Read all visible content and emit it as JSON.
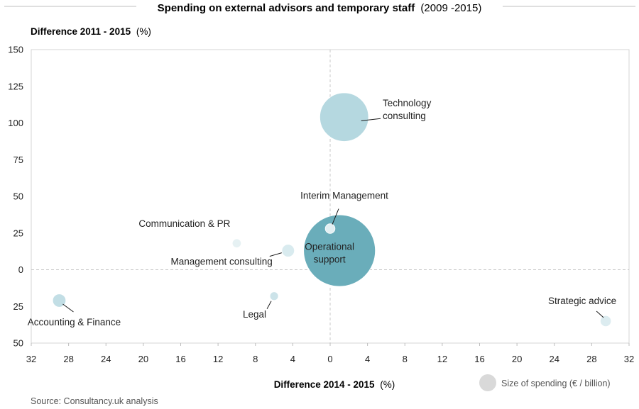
{
  "chart_data": {
    "type": "scatter",
    "variant": "bubble",
    "title": "Spending on external advisors and temporary staff",
    "title_suffix": "(2009 -2015)",
    "ylabel": "Difference 2011 - 2015",
    "ylabel_suffix": "(%)",
    "xlabel": "Difference 2014 - 2015",
    "xlabel_suffix": "(%)",
    "xlim": [
      -32,
      32
    ],
    "ylim": [
      -50,
      150
    ],
    "x_ticks": [
      -32,
      -28,
      -24,
      -20,
      -16,
      -12,
      -8,
      -4,
      0,
      4,
      8,
      12,
      16,
      20,
      24,
      28,
      32
    ],
    "x_tick_labels": [
      "32",
      "28",
      "24",
      "20",
      "16",
      "12",
      "8",
      "4",
      "0",
      "4",
      "8",
      "12",
      "16",
      "20",
      "24",
      "28",
      "32"
    ],
    "y_ticks": [
      150,
      125,
      100,
      75,
      50,
      25,
      0,
      -25,
      -50
    ],
    "y_tick_labels": [
      "150",
      "125",
      "100",
      "75",
      "50",
      "25",
      "0",
      "25",
      "50"
    ],
    "grid": false,
    "reference_lines": [
      "x = 0 (dashed)",
      "y = 0 (dashed)"
    ],
    "size_legend": "Size of spending  (€ / billion)",
    "source": "Source: Consultancy.uk analysis",
    "series": [
      {
        "name": "Technology consulting",
        "label_lines": [
          "Technology",
          "consulting"
        ],
        "x": 1.5,
        "y": 104,
        "size": 3.0,
        "color": "#b5d8e0",
        "label_pos": "right"
      },
      {
        "name": "Interim Management",
        "label_lines": [
          "Interim Management"
        ],
        "x": 0,
        "y": 28,
        "size": 0.12,
        "color": "#e3eff2",
        "label_pos": "above"
      },
      {
        "name": "Operational support",
        "label_lines": [
          "Operational",
          "support"
        ],
        "x": 1.0,
        "y": 13,
        "size": 6.5,
        "color": "#6aadba",
        "label_pos": "inside"
      },
      {
        "name": "Communication & PR",
        "label_lines": [
          "Communication & PR"
        ],
        "x": -10,
        "y": 18,
        "size": 0.1,
        "color": "#e6f1f3",
        "label_pos": "upper-left"
      },
      {
        "name": "Management consulting",
        "label_lines": [
          "Management consulting"
        ],
        "x": -4.5,
        "y": 13,
        "size": 0.2,
        "color": "#d9ebef",
        "label_pos": "lower-left"
      },
      {
        "name": "Legal",
        "label_lines": [
          "Legal"
        ],
        "x": -6,
        "y": -18,
        "size": 0.08,
        "color": "#cce3e9",
        "label_pos": "lower-left"
      },
      {
        "name": "Accounting & Finance",
        "label_lines": [
          "Accounting & Finance"
        ],
        "x": -29,
        "y": -21,
        "size": 0.22,
        "color": "#c2dee5",
        "label_pos": "lower-right"
      },
      {
        "name": "Strategic advice",
        "label_lines": [
          "Strategic advice"
        ],
        "x": 29.5,
        "y": -35,
        "size": 0.15,
        "color": "#dcecf0",
        "label_pos": "upper-left"
      }
    ]
  }
}
